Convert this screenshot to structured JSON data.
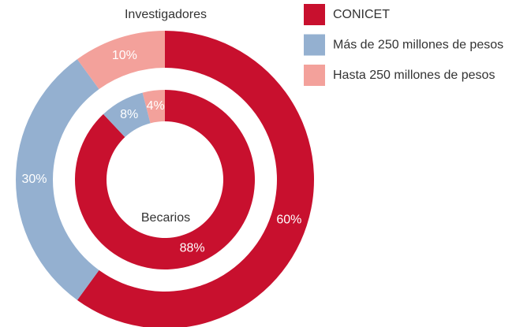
{
  "chart_data": {
    "type": "donut",
    "categories": [
      "CONICET",
      "Más de 250 millones de pesos",
      "Hasta 250 millones de pesos"
    ],
    "colors": [
      "#c8102e",
      "#94b0d0",
      "#f3a19b"
    ],
    "series": [
      {
        "name": "Investigadores",
        "values": [
          60,
          30,
          10
        ],
        "value_labels": [
          "60%",
          "30%",
          "10%"
        ]
      },
      {
        "name": "Becarios",
        "values": [
          88,
          8,
          4
        ],
        "value_labels": [
          "88%",
          "8%",
          "4%"
        ]
      }
    ],
    "legend": "top-right"
  }
}
